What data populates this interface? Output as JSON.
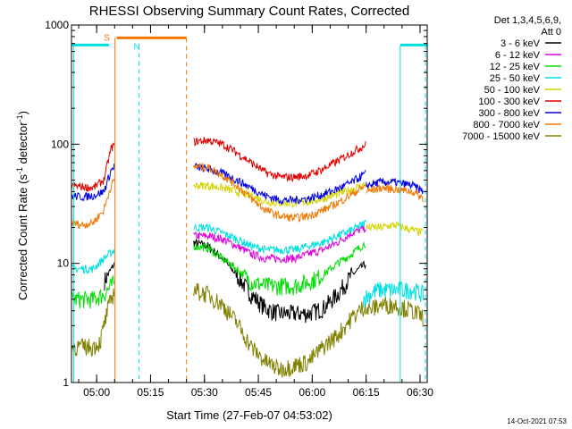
{
  "chart_data": {
    "type": "line",
    "title": "RHESSI Observing Summary Count Rates, Corrected",
    "xlabel": "Start Time (27-Feb-07 04:53:02)",
    "ylabel_main": "Corrected Count Rate (s",
    "ylabel_sup1": "-1",
    "ylabel_mid": " detector",
    "ylabel_sup2": "-1",
    "ylabel_end": ")",
    "y_scale": "log",
    "ylim": [
      1,
      1000
    ],
    "xlim_minutes_after_0453": [
      0,
      99
    ],
    "x_ticks": [
      {
        "label": "05:00",
        "t": 7
      },
      {
        "label": "05:15",
        "t": 22
      },
      {
        "label": "05:30",
        "t": 37
      },
      {
        "label": "05:45",
        "t": 52
      },
      {
        "label": "06:00",
        "t": 67
      },
      {
        "label": "06:15",
        "t": 82
      },
      {
        "label": "06:30",
        "t": 97
      }
    ],
    "y_ticks": [
      {
        "label": "1",
        "v": 1
      },
      {
        "label": "10",
        "v": 10
      },
      {
        "label": "100",
        "v": 100
      },
      {
        "label": "1000",
        "v": 1000
      }
    ],
    "legend_header_1": "Det 1,3,4,5,6,9,",
    "legend_header_2": "Att 0",
    "legend_position": "right",
    "timestamp": "14-Oct-2021 07:53",
    "flag_markers": [
      {
        "label": "S",
        "color": "#f07800"
      },
      {
        "label": "N",
        "color": "#00e0e0"
      }
    ],
    "series": [
      {
        "name": "3 - 6 keV",
        "color": "#000000",
        "segments": [
          {
            "x": [
              0,
              3,
              6,
              9,
              12
            ],
            "y": [
              null,
              null,
              null,
              7,
              10
            ]
          },
          {
            "x": [
              34,
              38,
              42,
              46,
              50,
              54,
              58,
              62,
              66,
              70,
              74,
              78,
              82
            ],
            "y": [
              15,
              14,
              11,
              8,
              5.5,
              4.2,
              3.8,
              3.8,
              3.8,
              4.2,
              5.5,
              8,
              10
            ]
          }
        ]
      },
      {
        "name": "6 - 12 keV",
        "color": "#e000e0",
        "segments": [
          {
            "x": [
              34,
              38,
              42,
              46,
              50,
              54,
              58,
              62,
              66,
              70,
              74,
              78,
              82
            ],
            "y": [
              17,
              17,
              16,
              14,
              12,
              11,
              11,
              11,
              12,
              13,
              15,
              18,
              20
            ]
          }
        ]
      },
      {
        "name": "12 - 25 keV",
        "color": "#00e000",
        "segments": [
          {
            "x": [
              0,
              3,
              6,
              9,
              12
            ],
            "y": [
              5,
              5,
              5,
              5.5,
              7
            ]
          },
          {
            "x": [
              34,
              38,
              42,
              46,
              50,
              54,
              58,
              62,
              66,
              70,
              74,
              78,
              82
            ],
            "y": [
              14,
              13.5,
              11,
              9,
              7,
              6.5,
              6.5,
              6.5,
              7,
              8,
              10,
              12,
              15
            ]
          }
        ]
      },
      {
        "name": "25 - 50 keV",
        "color": "#00e0e0",
        "segments": [
          {
            "x": [
              0,
              3,
              6,
              9,
              12
            ],
            "y": [
              9,
              9,
              9,
              11,
              13
            ]
          },
          {
            "x": [
              34,
              38,
              42,
              46,
              50,
              54,
              58,
              62,
              66,
              70,
              74,
              78,
              82
            ],
            "y": [
              20,
              20,
              18,
              16,
              14,
              13,
              13,
              13,
              14,
              15,
              17,
              19,
              22
            ]
          },
          {
            "x": [
              81,
              85,
              90,
              95,
              98
            ],
            "y": [
              5,
              6,
              6,
              6,
              5.5
            ]
          }
        ]
      },
      {
        "name": "50 - 100 keV",
        "color": "#d4d400",
        "segments": [
          {
            "x": [
              34,
              38,
              42,
              46,
              50,
              54,
              58,
              62,
              66,
              70,
              74,
              78,
              82
            ],
            "y": [
              45,
              45,
              43,
              40,
              37,
              33,
              32,
              32,
              33,
              35,
              38,
              42,
              46
            ]
          },
          {
            "x": [
              82,
              86,
              90,
              95,
              98
            ],
            "y": [
              20,
              20,
              21,
              19,
              18
            ]
          }
        ]
      },
      {
        "name": "100 - 300 keV",
        "color": "#e00000",
        "segments": [
          {
            "x": [
              0,
              3,
              6,
              9,
              11,
              12
            ],
            "y": [
              45,
              44,
              43,
              50,
              92,
              100
            ]
          },
          {
            "x": [
              34,
              38,
              42,
              46,
              50,
              54,
              58,
              62,
              66,
              70,
              74,
              78,
              82
            ],
            "y": [
              105,
              108,
              100,
              85,
              70,
              58,
              53,
              53,
              55,
              62,
              72,
              85,
              100
            ]
          }
        ]
      },
      {
        "name": "300 - 800 keV",
        "color": "#0000e0",
        "segments": [
          {
            "x": [
              0,
              3,
              6,
              9,
              11,
              12
            ],
            "y": [
              37,
              36,
              37,
              40,
              60,
              66
            ]
          },
          {
            "x": [
              34,
              38,
              42,
              46,
              50,
              54,
              58,
              62,
              66,
              70,
              74,
              78,
              82
            ],
            "y": [
              65,
              62,
              57,
              50,
              43,
              37,
              34,
              34,
              35,
              38,
              42,
              48,
              57
            ]
          },
          {
            "x": [
              82,
              86,
              90,
              95,
              98
            ],
            "y": [
              45,
              48,
              48,
              45,
              40
            ]
          }
        ]
      },
      {
        "name": "800 - 7000 keV",
        "color": "#f07800",
        "segments": [
          {
            "x": [
              0,
              3,
              6,
              9,
              11,
              12
            ],
            "y": [
              22,
              21,
              22,
              28,
              45,
              50
            ]
          },
          {
            "x": [
              34,
              38,
              42,
              46,
              50,
              54,
              58,
              62,
              66,
              70,
              74,
              78,
              82
            ],
            "y": [
              65,
              64,
              55,
              45,
              35,
              28,
              25,
              24,
              25,
              28,
              32,
              38,
              45
            ]
          },
          {
            "x": [
              82,
              86,
              90,
              95,
              98
            ],
            "y": [
              40,
              43,
              42,
              40,
              35
            ]
          }
        ]
      },
      {
        "name": "7000 - 15000 keV",
        "color": "#808000",
        "segments": [
          {
            "x": [
              0,
              3,
              6,
              8,
              10,
              12
            ],
            "y": [
              2,
              2,
              2,
              2.2,
              4,
              6
            ]
          },
          {
            "x": [
              34,
              38,
              42,
              46,
              50,
              54,
              58,
              62,
              66,
              70,
              74,
              78,
              82
            ],
            "y": [
              6,
              5.5,
              4.5,
              3.2,
              2,
              1.5,
              1.3,
              1.4,
              1.5,
              2,
              2.5,
              3.5,
              4.5
            ]
          },
          {
            "x": [
              82,
              86,
              90,
              95,
              98
            ],
            "y": [
              4,
              4.5,
              4.5,
              4,
              3.5
            ]
          }
        ]
      }
    ]
  }
}
